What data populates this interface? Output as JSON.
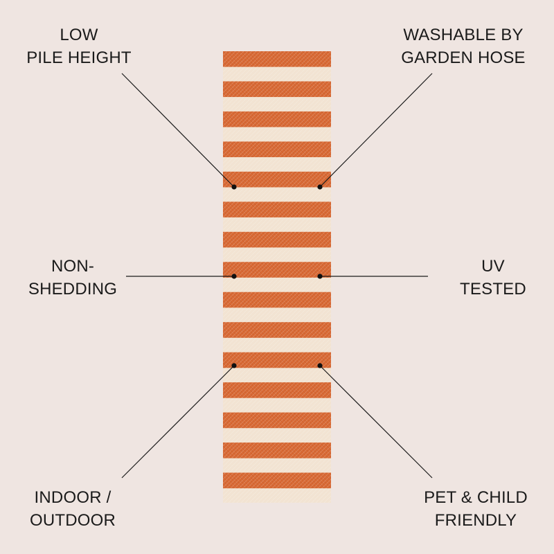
{
  "rug": {
    "stripe_count": 15,
    "colors": {
      "stripe": "#d96a35",
      "base": "#f2e3d2",
      "background": "#efe5e1"
    }
  },
  "features": {
    "low_pile": {
      "line1": "LOW",
      "line2": "PILE HEIGHT"
    },
    "washable": {
      "line1": "WASHABLE BY",
      "line2": "GARDEN HOSE"
    },
    "non_shedding": {
      "line1": "NON-",
      "line2": "SHEDDING"
    },
    "uv": {
      "line1": "UV",
      "line2": "TESTED"
    },
    "indoor_outdoor": {
      "line1": "INDOOR /",
      "line2": "OUTDOOR"
    },
    "pet_child": {
      "line1": "PET & CHILD",
      "line2": "FRIENDLY"
    }
  }
}
